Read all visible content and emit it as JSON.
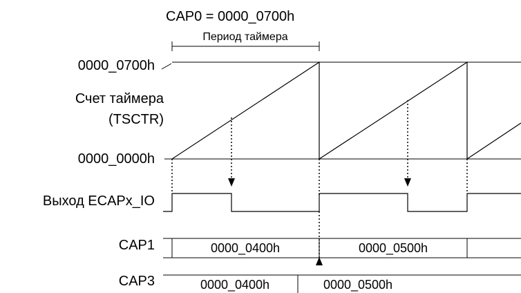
{
  "top_label": "CAP0 = 0000_0700h",
  "period_label": "Период таймера",
  "axis": {
    "max_label": "0000_0700h",
    "min_label": "0000_0000h",
    "counter_label_line1": "Счет таймера",
    "counter_label_line2": "(TSCTR)"
  },
  "signals": {
    "output_label": "Выход ECAPx_IO",
    "cap1_label": "CAP1",
    "cap3_label": "CAP3"
  },
  "cap1_values": [
    "0000_0400h",
    "0000_0500h"
  ],
  "cap3_values": [
    "0000_0400h",
    "0000_0500h"
  ]
}
